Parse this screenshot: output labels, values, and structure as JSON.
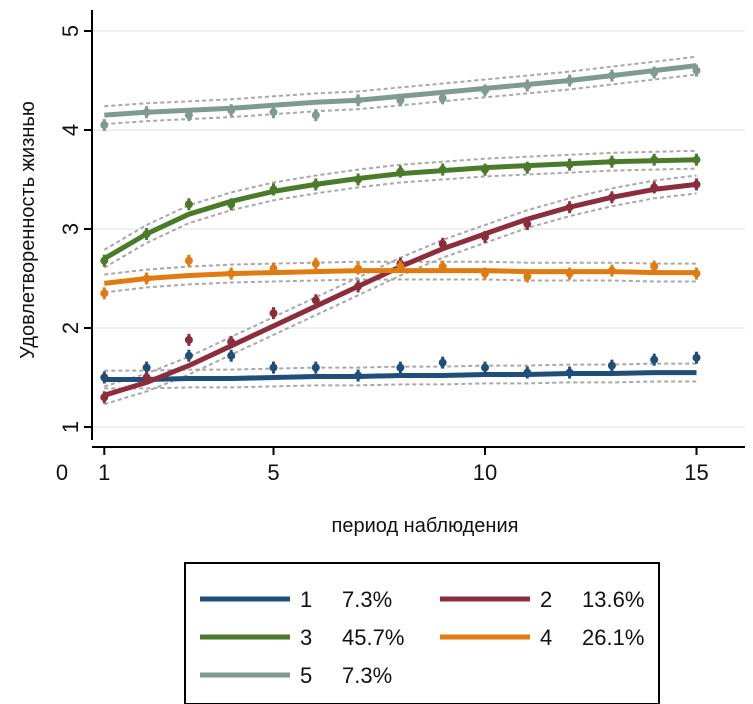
{
  "chart_data": {
    "type": "line",
    "title": "",
    "xlabel": "период наблюдения",
    "ylabel": "Удовлетворенность жизнью",
    "xlim": [
      0,
      15
    ],
    "ylim": [
      1,
      5
    ],
    "x_ticks": [
      0,
      1,
      5,
      10,
      15
    ],
    "y_ticks": [
      1,
      2,
      3,
      4,
      5
    ],
    "grid": "horizontal",
    "legend_position": "bottom",
    "x": [
      1,
      2,
      3,
      4,
      5,
      6,
      7,
      8,
      9,
      10,
      11,
      12,
      13,
      14,
      15
    ],
    "series": [
      {
        "name": "1",
        "share": "7.3%",
        "color": "#1f4e79",
        "observed": [
          1.5,
          1.6,
          1.72,
          1.72,
          1.6,
          1.6,
          1.52,
          1.6,
          1.65,
          1.6,
          1.55,
          1.55,
          1.62,
          1.68,
          1.7
        ],
        "fitted": [
          1.48,
          1.48,
          1.49,
          1.49,
          1.5,
          1.51,
          1.51,
          1.52,
          1.52,
          1.53,
          1.53,
          1.54,
          1.54,
          1.55,
          1.55
        ]
      },
      {
        "name": "2",
        "share": "13.6%",
        "color": "#8c2d3c",
        "observed": [
          1.3,
          1.5,
          1.88,
          1.86,
          2.15,
          2.28,
          2.42,
          2.65,
          2.85,
          2.92,
          3.05,
          3.22,
          3.32,
          3.42,
          3.45
        ],
        "fitted": [
          1.32,
          1.45,
          1.62,
          1.82,
          2.02,
          2.22,
          2.42,
          2.62,
          2.8,
          2.95,
          3.1,
          3.22,
          3.32,
          3.4,
          3.45
        ]
      },
      {
        "name": "3",
        "share": "45.7%",
        "color": "#4a7a2a",
        "observed": [
          2.68,
          2.95,
          3.25,
          3.25,
          3.4,
          3.45,
          3.5,
          3.58,
          3.6,
          3.6,
          3.62,
          3.65,
          3.68,
          3.7,
          3.7
        ],
        "fitted": [
          2.7,
          2.95,
          3.15,
          3.28,
          3.38,
          3.45,
          3.51,
          3.56,
          3.59,
          3.62,
          3.64,
          3.66,
          3.68,
          3.69,
          3.7
        ]
      },
      {
        "name": "4",
        "share": "26.1%",
        "color": "#e07b12",
        "observed": [
          2.35,
          2.5,
          2.68,
          2.55,
          2.6,
          2.65,
          2.6,
          2.62,
          2.62,
          2.55,
          2.52,
          2.55,
          2.58,
          2.62,
          2.55
        ],
        "fitted": [
          2.45,
          2.5,
          2.53,
          2.55,
          2.56,
          2.57,
          2.58,
          2.58,
          2.58,
          2.58,
          2.57,
          2.57,
          2.57,
          2.56,
          2.56
        ]
      },
      {
        "name": "5",
        "share": "7.3%",
        "color": "#7f9a8f",
        "observed": [
          4.05,
          4.18,
          4.15,
          4.2,
          4.18,
          4.15,
          4.3,
          4.3,
          4.32,
          4.4,
          4.45,
          4.5,
          4.55,
          4.58,
          4.6
        ],
        "fitted": [
          4.15,
          4.18,
          4.2,
          4.22,
          4.25,
          4.28,
          4.3,
          4.34,
          4.38,
          4.42,
          4.46,
          4.5,
          4.55,
          4.6,
          4.65
        ]
      }
    ]
  }
}
